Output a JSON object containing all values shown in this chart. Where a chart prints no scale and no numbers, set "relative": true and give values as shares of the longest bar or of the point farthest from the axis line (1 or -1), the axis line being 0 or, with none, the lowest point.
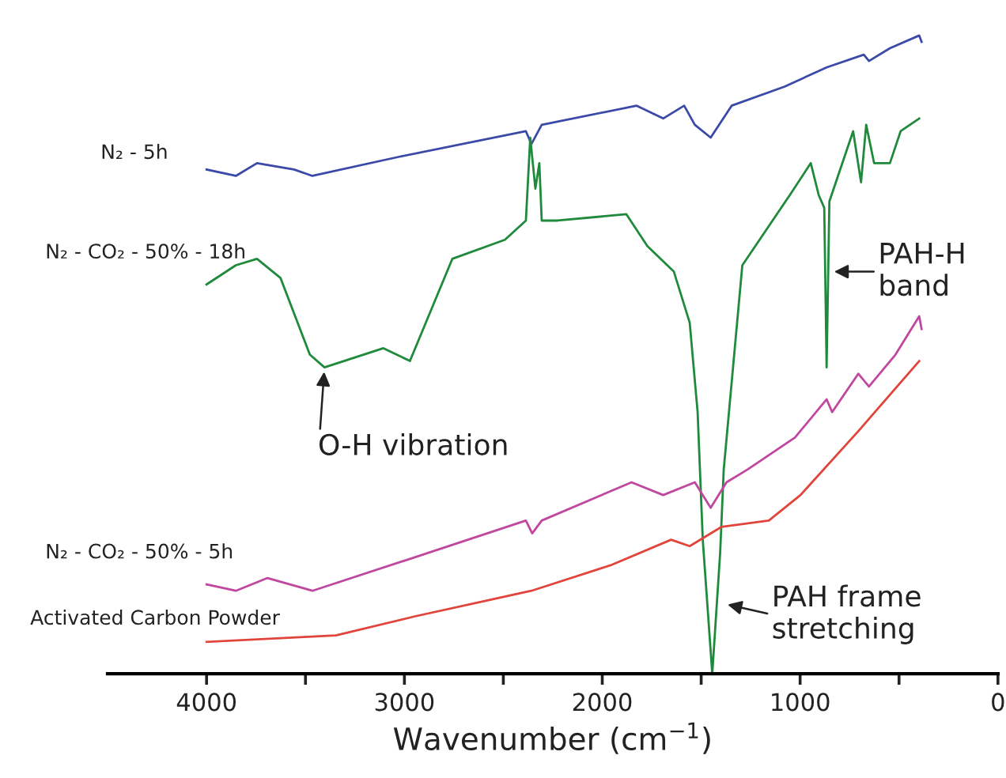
{
  "chart_data": {
    "type": "line",
    "relative": true,
    "xlabel": "Wavenumber (cm$^{−1}$)",
    "xlim": [
      4500,
      0
    ],
    "xticks": [
      4000,
      {
        "value": 3500,
        "label": null
      },
      3000,
      {
        "value": 2500,
        "label": null
      },
      2000,
      {
        "value": 1500,
        "label": null
      },
      1000,
      {
        "value": 500,
        "label": null
      },
      0
    ],
    "tick_labels": "x",
    "line_style": "solid",
    "marker": "none",
    "series": [
      {
        "name": "N₂ - 5h",
        "color": "#3b4aa8",
        "x": [
          4000,
          3852,
          3745,
          3558,
          3465,
          3026,
          2386,
          2358,
          2306,
          1826,
          1692,
          1586,
          1532,
          1452,
          1346,
          1078,
          866,
          678,
          652,
          546,
          398,
          386
        ],
        "values": [
          0.79,
          0.78,
          0.8,
          0.79,
          0.78,
          0.81,
          0.85,
          0.83,
          0.86,
          0.89,
          0.87,
          0.89,
          0.86,
          0.84,
          0.89,
          0.92,
          0.95,
          0.97,
          0.96,
          0.98,
          1.0,
          0.99
        ]
      },
      {
        "name": "N₂ - CO₂ - 50% - 18h",
        "color": "#1f8a3c",
        "x": [
          4000,
          3852,
          3745,
          3626,
          3478,
          3404,
          3106,
          2972,
          2758,
          2492,
          2386,
          2364,
          2338,
          2318,
          2306,
          2226,
          1878,
          1772,
          1638,
          1558,
          1518,
          1492,
          1444,
          1404,
          1386,
          1292,
          1052,
          946,
          906,
          878,
          866,
          852,
          732,
          692,
          666,
          626,
          546,
          492,
          398
        ],
        "values": [
          0.61,
          0.64,
          0.65,
          0.62,
          0.5,
          0.48,
          0.51,
          0.49,
          0.65,
          0.68,
          0.71,
          0.84,
          0.76,
          0.8,
          0.71,
          0.71,
          0.72,
          0.67,
          0.63,
          0.55,
          0.41,
          0.21,
          0.0,
          0.19,
          0.32,
          0.64,
          0.75,
          0.8,
          0.75,
          0.73,
          0.48,
          0.74,
          0.85,
          0.77,
          0.86,
          0.8,
          0.8,
          0.85,
          0.87
        ]
      },
      {
        "name": "N₂ - CO₂ - 50% - 5h",
        "color": "#c0479f",
        "x": [
          4000,
          3852,
          3692,
          3465,
          2972,
          2386,
          2354,
          2306,
          1852,
          1692,
          1532,
          1452,
          1372,
          1266,
          1026,
          866,
          838,
          706,
          652,
          518,
          398,
          386
        ],
        "values": [
          0.14,
          0.13,
          0.15,
          0.13,
          0.18,
          0.24,
          0.22,
          0.24,
          0.3,
          0.28,
          0.3,
          0.26,
          0.3,
          0.32,
          0.37,
          0.43,
          0.41,
          0.47,
          0.45,
          0.5,
          0.56,
          0.54
        ]
      },
      {
        "name": "Activated Carbon Powder",
        "color": "#e0443a",
        "x": [
          4000,
          3346,
          2946,
          2358,
          1958,
          1652,
          1558,
          1398,
          1158,
          998,
          706,
          398
        ],
        "values": [
          0.05,
          0.06,
          0.09,
          0.13,
          0.17,
          0.21,
          0.2,
          0.23,
          0.24,
          0.28,
          0.38,
          0.49
        ]
      }
    ],
    "annotations": [
      {
        "text": "O-H vibration",
        "x": 3404,
        "y": 0.48
      },
      {
        "text": "PAH-H\nband",
        "x": 850,
        "y": 0.63
      },
      {
        "text": "PAH frame\nstretching",
        "x": 1388,
        "y": 0.11
      }
    ]
  }
}
